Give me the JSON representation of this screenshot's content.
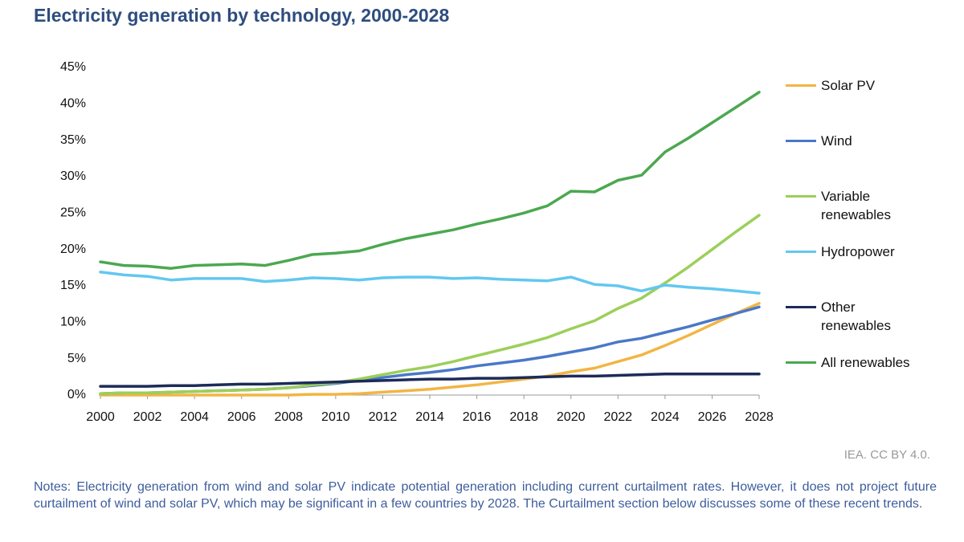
{
  "chart_data": {
    "type": "line",
    "title": "Electricity generation by technology, 2000-2028",
    "source": "IEA. CC BY 4.0.",
    "notes": "Notes: Electricity generation from wind and solar PV indicate potential generation including current curtailment rates. However, it does not project future curtailment of wind and solar PV, which may be significant in a few countries by 2028. The Curtailment section below discusses some of these recent trends.",
    "x": [
      2000,
      2001,
      2002,
      2003,
      2004,
      2005,
      2006,
      2007,
      2008,
      2009,
      2010,
      2011,
      2012,
      2013,
      2014,
      2015,
      2016,
      2017,
      2018,
      2019,
      2020,
      2021,
      2022,
      2023,
      2024,
      2025,
      2026,
      2027,
      2028
    ],
    "xlim": [
      2000,
      2028
    ],
    "xticks": [
      2000,
      2002,
      2004,
      2006,
      2008,
      2010,
      2012,
      2014,
      2016,
      2018,
      2020,
      2022,
      2024,
      2026,
      2028
    ],
    "ylim": [
      0,
      45
    ],
    "yticks": [
      {
        "value": 0,
        "label": "0%"
      },
      {
        "value": 5,
        "label": "5%"
      },
      {
        "value": 10,
        "label": "10%"
      },
      {
        "value": 15,
        "label": "15%"
      },
      {
        "value": 20,
        "label": "20%"
      },
      {
        "value": 25,
        "label": "25%"
      },
      {
        "value": 30,
        "label": "30%"
      },
      {
        "value": 35,
        "label": "35%"
      },
      {
        "value": 40,
        "label": "40%"
      },
      {
        "value": 45,
        "label": "45%"
      }
    ],
    "grid": false,
    "legend": "right",
    "series": [
      {
        "name": "Solar PV",
        "color": "#f2b544",
        "values": [
          0,
          0,
          0,
          0,
          0,
          0,
          0,
          0,
          0,
          0.1,
          0.1,
          0.2,
          0.4,
          0.6,
          0.8,
          1.1,
          1.4,
          1.8,
          2.2,
          2.6,
          3.2,
          3.7,
          4.6,
          5.5,
          6.8,
          8.2,
          9.7,
          11.2,
          12.6
        ]
      },
      {
        "name": "Wind",
        "color": "#4a78c8",
        "values": [
          0.2,
          0.3,
          0.3,
          0.4,
          0.5,
          0.6,
          0.7,
          0.8,
          1.0,
          1.3,
          1.6,
          2.0,
          2.4,
          2.8,
          3.1,
          3.5,
          4.0,
          4.4,
          4.8,
          5.3,
          5.9,
          6.5,
          7.3,
          7.8,
          8.6,
          9.4,
          10.3,
          11.2,
          12.1
        ]
      },
      {
        "name": "Variable renewables",
        "color": "#9ccf5a",
        "values": [
          0.2,
          0.3,
          0.3,
          0.4,
          0.5,
          0.6,
          0.7,
          0.8,
          1.0,
          1.4,
          1.7,
          2.2,
          2.8,
          3.4,
          3.9,
          4.6,
          5.4,
          6.2,
          7.0,
          7.9,
          9.1,
          10.2,
          11.9,
          13.3,
          15.4,
          17.6,
          20.0,
          22.4,
          24.7
        ]
      },
      {
        "name": "Hydropower",
        "color": "#62c8ef",
        "values": [
          16.9,
          16.5,
          16.3,
          15.8,
          16.0,
          16.0,
          16.0,
          15.6,
          15.8,
          16.1,
          16.0,
          15.8,
          16.1,
          16.2,
          16.2,
          16.0,
          16.1,
          15.9,
          15.8,
          15.7,
          16.2,
          15.2,
          15.0,
          14.3,
          15.1,
          14.8,
          14.6,
          14.3,
          14.0
        ]
      },
      {
        "name": "Other renewables",
        "color": "#1c2b58",
        "values": [
          1.2,
          1.2,
          1.2,
          1.3,
          1.3,
          1.4,
          1.5,
          1.5,
          1.6,
          1.7,
          1.8,
          1.9,
          2.0,
          2.1,
          2.2,
          2.2,
          2.3,
          2.3,
          2.4,
          2.5,
          2.6,
          2.6,
          2.7,
          2.8,
          2.9,
          2.9,
          2.9,
          2.9,
          2.9
        ]
      },
      {
        "name": "All renewables",
        "color": "#4ba850",
        "values": [
          18.3,
          17.8,
          17.7,
          17.4,
          17.8,
          17.9,
          18.0,
          17.8,
          18.5,
          19.3,
          19.5,
          19.8,
          20.7,
          21.5,
          22.1,
          22.7,
          23.5,
          24.2,
          25.0,
          26.0,
          28.0,
          27.9,
          29.5,
          30.2,
          33.4,
          35.3,
          37.4,
          39.5,
          41.6
        ]
      }
    ]
  }
}
